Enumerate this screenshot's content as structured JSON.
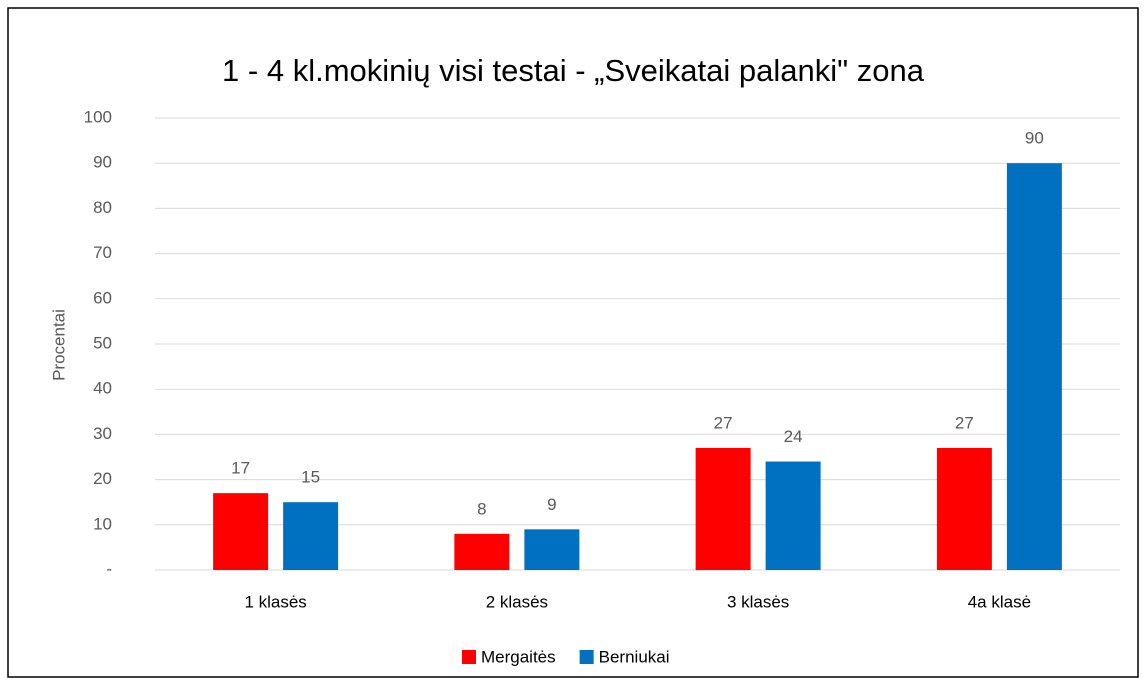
{
  "chart_data": {
    "type": "bar",
    "title": "1 - 4 kl.mokinių visi testai - „Sveikatai palanki\" zona",
    "y_label": "Procentai",
    "categories": [
      "1 klasės",
      "2 klasės",
      "3 klasės",
      "4a klasė"
    ],
    "series": [
      {
        "name": "Mergaitės",
        "color": "#ff0000",
        "values": [
          17,
          8,
          27,
          27
        ]
      },
      {
        "name": "Berniukai",
        "color": "#0070c0",
        "values": [
          15,
          9,
          24,
          90
        ]
      }
    ],
    "ylim": [
      0,
      100
    ],
    "yticks": [
      {
        "value": 0,
        "label": "-"
      },
      10,
      20,
      30,
      40,
      50,
      60,
      70,
      80,
      90,
      100
    ],
    "grid": true,
    "legend": "bottom"
  }
}
